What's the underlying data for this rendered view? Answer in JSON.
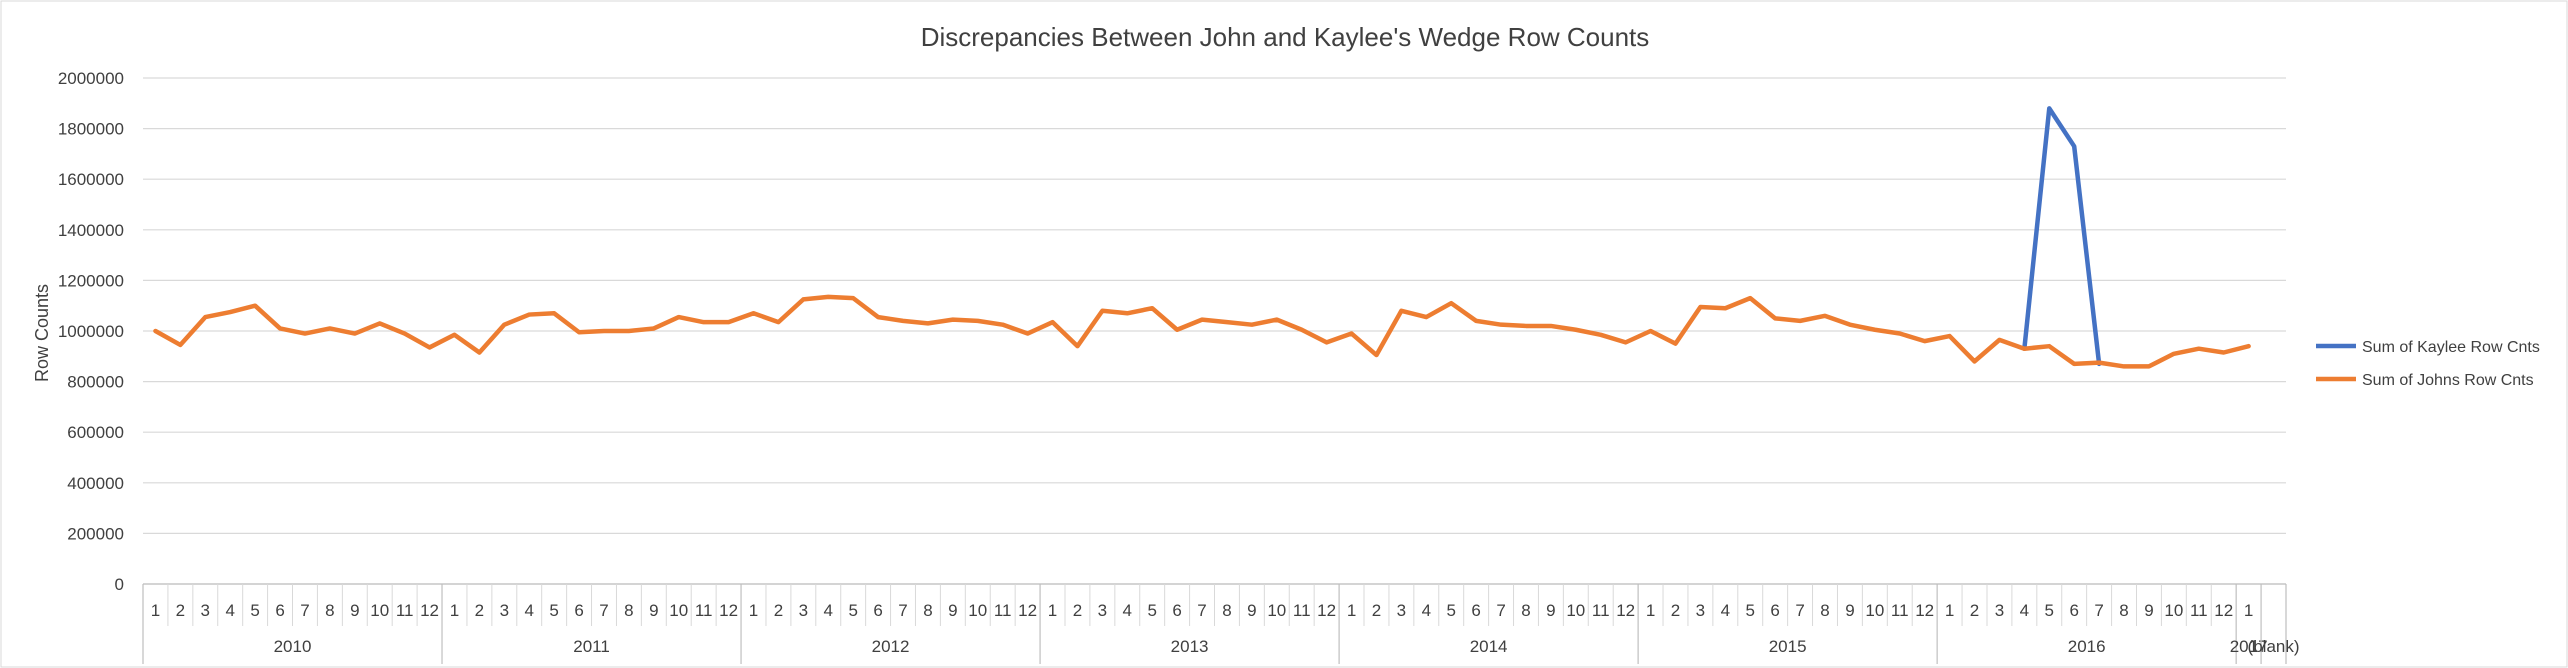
{
  "chart_data": {
    "type": "line",
    "title": "Discrepancies Between John and Kaylee's Wedge Row Counts",
    "ylabel": "Row Counts",
    "xlabel": "",
    "ylim": [
      0,
      2000000
    ],
    "yticks": [
      "0",
      "200000",
      "400000",
      "600000",
      "800000",
      "1000000",
      "1200000",
      "1400000",
      "1600000",
      "1800000",
      "2000000"
    ],
    "grid": "horizontal",
    "legend": "right",
    "years": [
      {
        "label": "2010",
        "months": [
          "1",
          "2",
          "3",
          "4",
          "5",
          "6",
          "7",
          "8",
          "9",
          "10",
          "11",
          "12"
        ]
      },
      {
        "label": "2011",
        "months": [
          "1",
          "2",
          "3",
          "4",
          "5",
          "6",
          "7",
          "8",
          "9",
          "10",
          "11",
          "12"
        ]
      },
      {
        "label": "2012",
        "months": [
          "1",
          "2",
          "3",
          "4",
          "5",
          "6",
          "7",
          "8",
          "9",
          "10",
          "11",
          "12"
        ]
      },
      {
        "label": "2013",
        "months": [
          "1",
          "2",
          "3",
          "4",
          "5",
          "6",
          "7",
          "8",
          "9",
          "10",
          "11",
          "12"
        ]
      },
      {
        "label": "2014",
        "months": [
          "1",
          "2",
          "3",
          "4",
          "5",
          "6",
          "7",
          "8",
          "9",
          "10",
          "11",
          "12"
        ]
      },
      {
        "label": "2015",
        "months": [
          "1",
          "2",
          "3",
          "4",
          "5",
          "6",
          "7",
          "8",
          "9",
          "10",
          "11",
          "12"
        ]
      },
      {
        "label": "2016",
        "months": [
          "1",
          "2",
          "3",
          "4",
          "5",
          "6",
          "7",
          "8",
          "9",
          "10",
          "11",
          "12"
        ]
      },
      {
        "label": "2017",
        "months": [
          "1"
        ]
      },
      {
        "label": "(blank)",
        "months": [
          ""
        ]
      }
    ],
    "series": [
      {
        "name": "Sum of Kaylee Row Cnts",
        "color": "#4472C4",
        "values": [
          null,
          null,
          null,
          null,
          null,
          null,
          null,
          null,
          null,
          null,
          null,
          null,
          null,
          null,
          null,
          null,
          null,
          null,
          null,
          null,
          null,
          null,
          null,
          null,
          null,
          null,
          null,
          null,
          null,
          null,
          null,
          null,
          null,
          null,
          null,
          null,
          null,
          null,
          null,
          null,
          null,
          null,
          null,
          null,
          null,
          null,
          null,
          null,
          null,
          null,
          null,
          null,
          null,
          null,
          null,
          null,
          null,
          null,
          null,
          null,
          null,
          null,
          null,
          null,
          null,
          null,
          null,
          null,
          null,
          null,
          null,
          null,
          null,
          null,
          null,
          930000,
          1880000,
          1730000,
          870000,
          null,
          null,
          null,
          null,
          null,
          null,
          null
        ]
      },
      {
        "name": "Sum of Johns Row Cnts",
        "color": "#ED7D31",
        "values": [
          1000000,
          945000,
          1055000,
          1075000,
          1100000,
          1010000,
          990000,
          1010000,
          990000,
          1030000,
          990000,
          935000,
          985000,
          915000,
          1025000,
          1065000,
          1070000,
          995000,
          1000000,
          1000000,
          1010000,
          1055000,
          1035000,
          1035000,
          1070000,
          1035000,
          1125000,
          1135000,
          1130000,
          1055000,
          1040000,
          1030000,
          1045000,
          1040000,
          1025000,
          990000,
          1035000,
          940000,
          1080000,
          1070000,
          1090000,
          1005000,
          1045000,
          1035000,
          1025000,
          1045000,
          1005000,
          955000,
          990000,
          905000,
          1080000,
          1055000,
          1110000,
          1040000,
          1025000,
          1020000,
          1020000,
          1005000,
          985000,
          955000,
          1000000,
          950000,
          1095000,
          1090000,
          1130000,
          1050000,
          1040000,
          1060000,
          1025000,
          1005000,
          990000,
          960000,
          980000,
          880000,
          965000,
          930000,
          940000,
          870000,
          875000,
          860000,
          860000,
          910000,
          930000,
          915000,
          940000,
          null
        ]
      }
    ]
  }
}
